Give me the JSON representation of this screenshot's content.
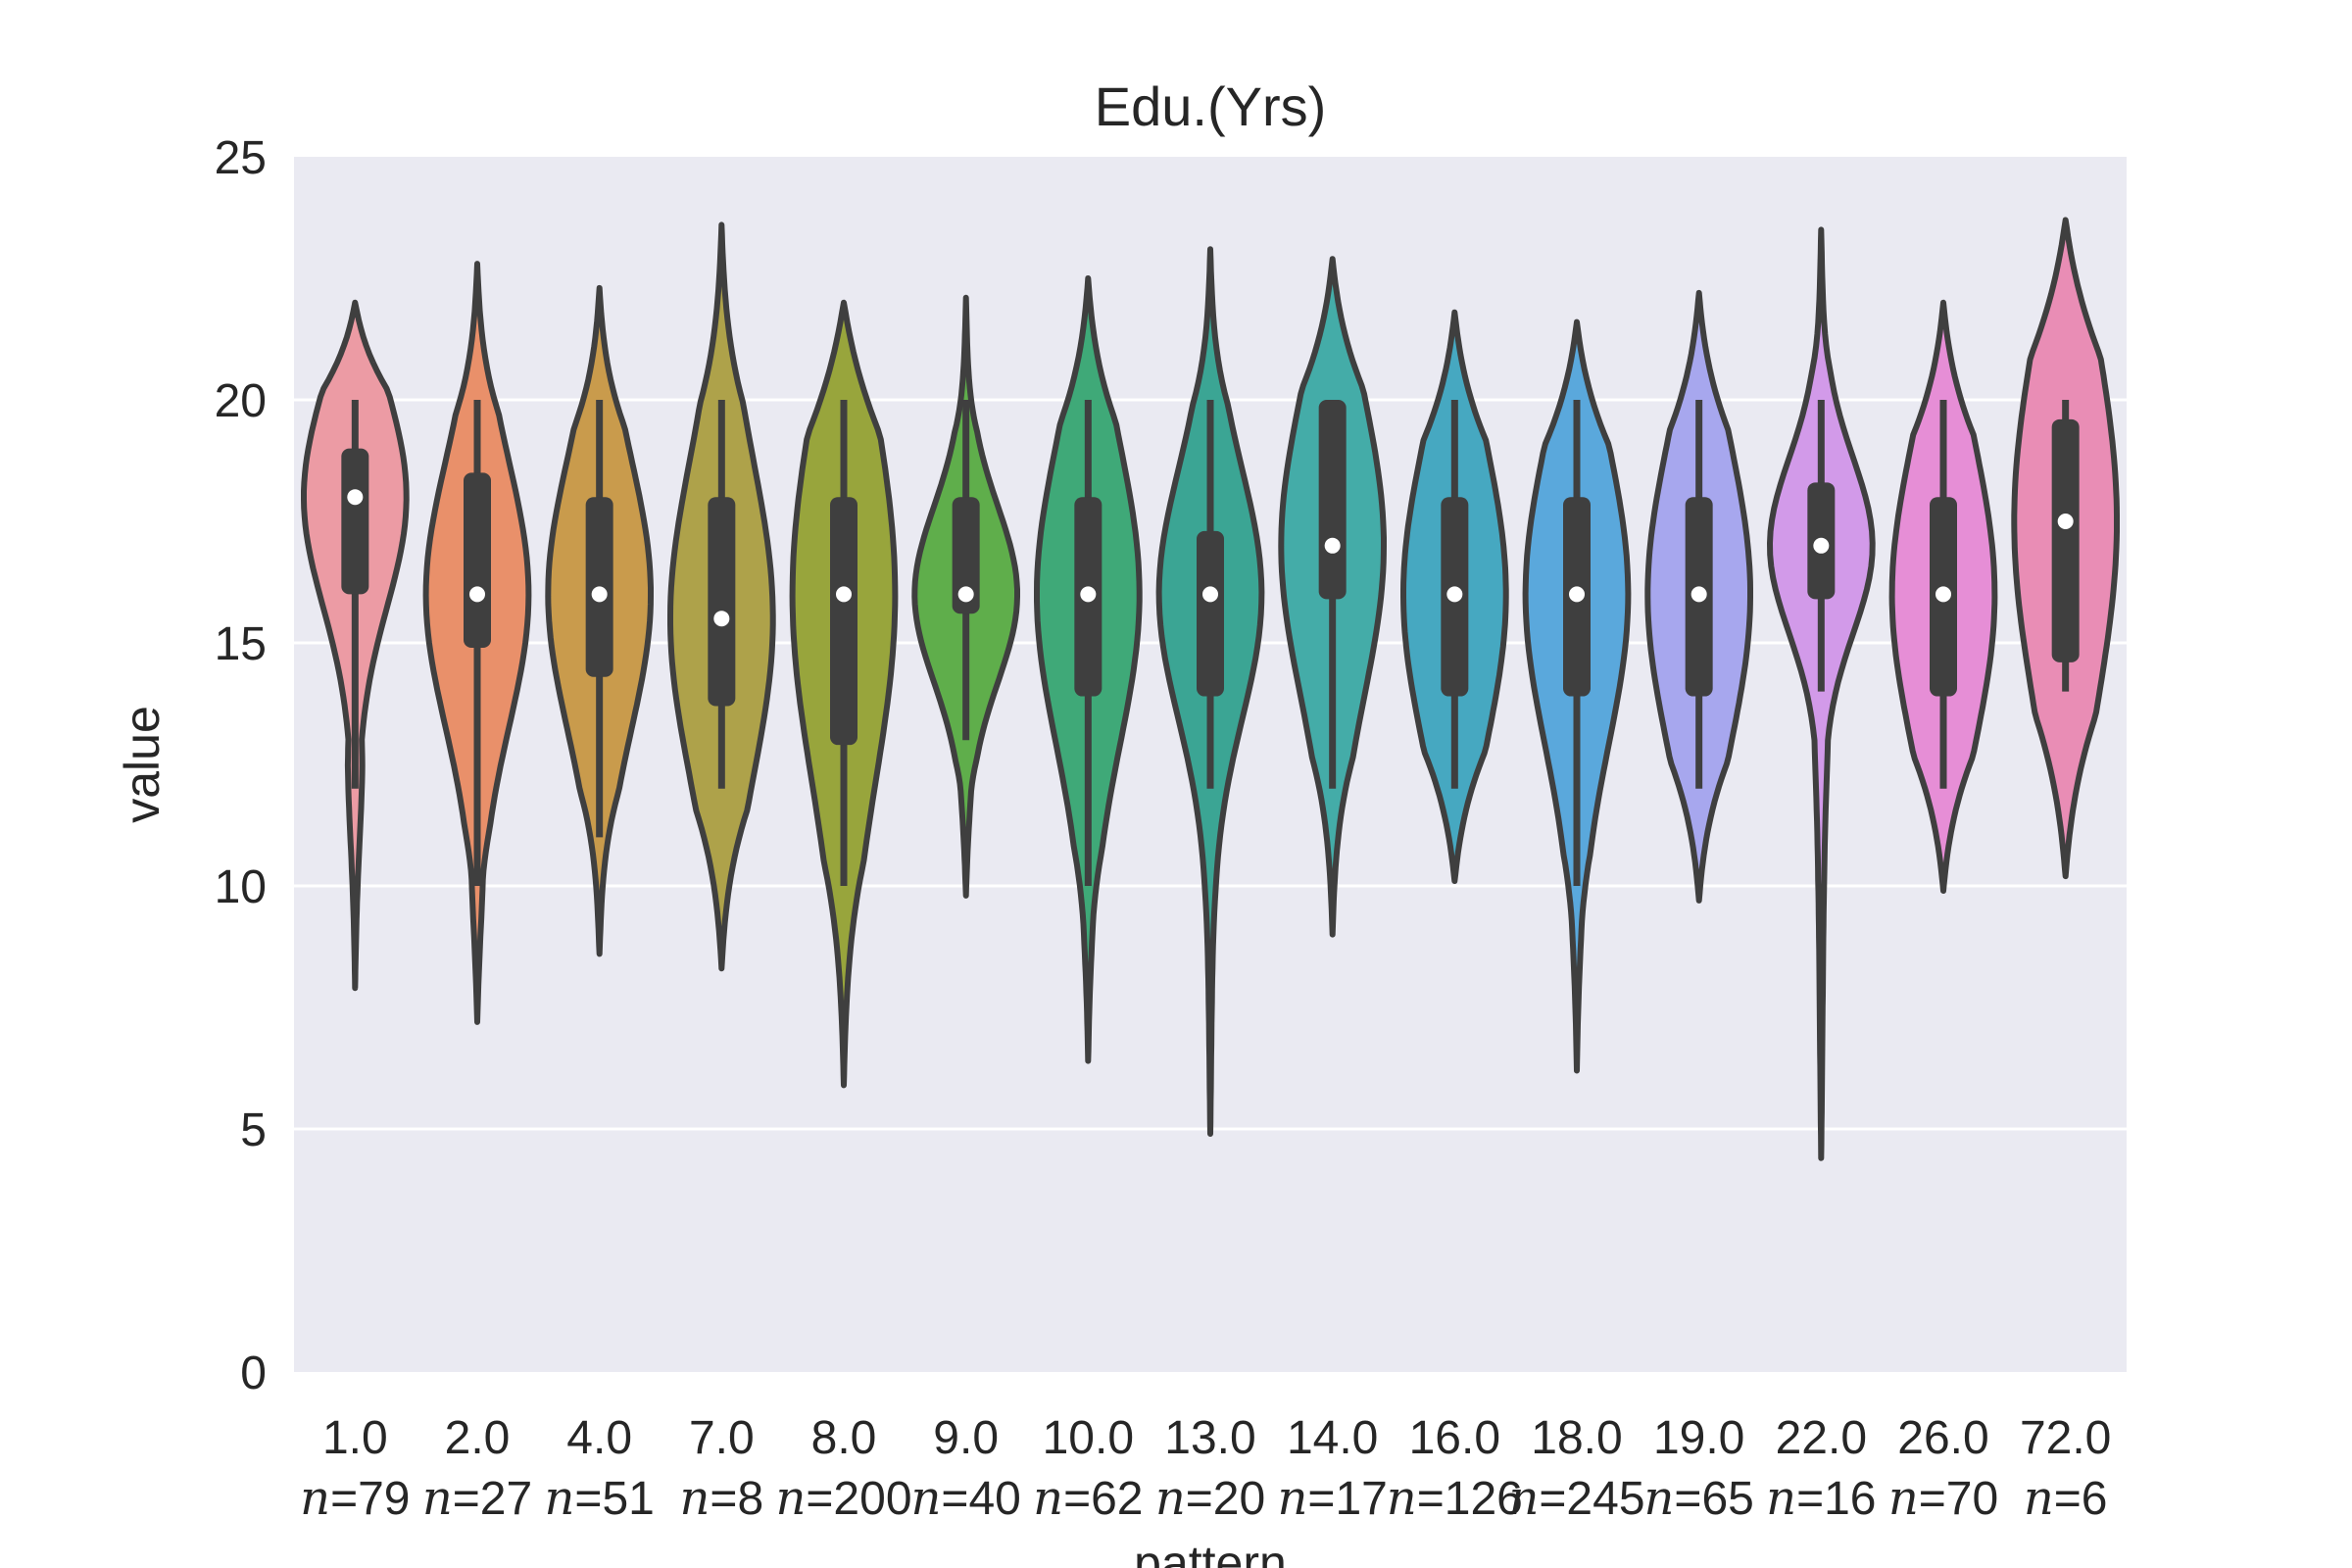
{
  "chart_data": {
    "type": "violin",
    "title": "Edu.(Yrs)",
    "xlabel": "pattern",
    "ylabel": "value",
    "ylim": [
      0,
      25
    ],
    "yticks": [
      0,
      5,
      10,
      15,
      20,
      25
    ],
    "grid": true,
    "n_prefix": "n",
    "categories": [
      {
        "label": "1.0",
        "n_text": "=79",
        "min": 7.9,
        "max": 22.0,
        "q1": 16.0,
        "median": 18.0,
        "q3": 19.0,
        "whisker_low": 12.0,
        "whisker_high": 20.0,
        "color": "#ec9ba4"
      },
      {
        "label": "2.0",
        "n_text": "=27",
        "min": 7.2,
        "max": 22.8,
        "q1": 14.9,
        "median": 16.0,
        "q3": 18.5,
        "whisker_low": 10.0,
        "whisker_high": 20.0,
        "color": "#e9906a"
      },
      {
        "label": "4.0",
        "n_text": "=51",
        "min": 8.6,
        "max": 22.3,
        "q1": 14.3,
        "median": 16.0,
        "q3": 18.0,
        "whisker_low": 11.0,
        "whisker_high": 20.0,
        "color": "#c99b4c"
      },
      {
        "label": "7.0",
        "n_text": "=8",
        "min": 8.3,
        "max": 23.6,
        "q1": 13.7,
        "median": 15.5,
        "q3": 18.0,
        "whisker_low": 12.0,
        "whisker_high": 20.0,
        "color": "#aea24a"
      },
      {
        "label": "8.0",
        "n_text": "=200",
        "min": 5.9,
        "max": 22.0,
        "q1": 12.9,
        "median": 16.0,
        "q3": 18.0,
        "whisker_low": 10.0,
        "whisker_high": 20.0,
        "color": "#98a53c"
      },
      {
        "label": "9.0",
        "n_text": "=40",
        "min": 9.8,
        "max": 22.1,
        "q1": 15.6,
        "median": 16.0,
        "q3": 18.0,
        "whisker_low": 13.0,
        "whisker_high": 20.0,
        "color": "#5fae4b"
      },
      {
        "label": "10.0",
        "n_text": "=62",
        "min": 6.4,
        "max": 22.5,
        "q1": 13.9,
        "median": 16.0,
        "q3": 18.0,
        "whisker_low": 10.0,
        "whisker_high": 20.0,
        "color": "#3fa978"
      },
      {
        "label": "13.0",
        "n_text": "=20",
        "min": 4.9,
        "max": 23.1,
        "q1": 13.9,
        "median": 16.0,
        "q3": 17.3,
        "whisker_low": 12.0,
        "whisker_high": 20.0,
        "color": "#3ba594"
      },
      {
        "label": "14.0",
        "n_text": "=17",
        "min": 9.0,
        "max": 22.9,
        "q1": 15.9,
        "median": 17.0,
        "q3": 20.0,
        "whisker_low": 12.0,
        "whisker_high": 20.0,
        "color": "#44aca8"
      },
      {
        "label": "16.0",
        "n_text": "=126",
        "min": 10.1,
        "max": 21.8,
        "q1": 13.9,
        "median": 16.0,
        "q3": 18.0,
        "whisker_low": 12.0,
        "whisker_high": 20.0,
        "color": "#46a8c1"
      },
      {
        "label": "18.0",
        "n_text": "=245",
        "min": 6.2,
        "max": 21.6,
        "q1": 13.9,
        "median": 16.0,
        "q3": 18.0,
        "whisker_low": 10.0,
        "whisker_high": 20.0,
        "color": "#5aa8dc"
      },
      {
        "label": "19.0",
        "n_text": "=65",
        "min": 9.7,
        "max": 22.2,
        "q1": 13.9,
        "median": 16.0,
        "q3": 18.0,
        "whisker_low": 12.0,
        "whisker_high": 20.0,
        "color": "#a7a7ee"
      },
      {
        "label": "22.0",
        "n_text": "=16",
        "min": 4.4,
        "max": 23.5,
        "q1": 15.9,
        "median": 17.0,
        "q3": 18.3,
        "whisker_low": 14.0,
        "whisker_high": 20.0,
        "color": "#d29ae9"
      },
      {
        "label": "26.0",
        "n_text": "=70",
        "min": 9.9,
        "max": 22.0,
        "q1": 13.9,
        "median": 16.0,
        "q3": 18.0,
        "whisker_low": 12.0,
        "whisker_high": 20.0,
        "color": "#e68ed6"
      },
      {
        "label": "72.0",
        "n_text": "=6",
        "min": 10.2,
        "max": 23.7,
        "q1": 14.6,
        "median": 17.5,
        "q3": 19.6,
        "whisker_low": 14.0,
        "whisker_high": 20.0,
        "color": "#e98db5"
      }
    ]
  },
  "colors": {
    "axes_background": "#eaeaf2",
    "grid": "#ffffff",
    "outline": "#3f3f3f",
    "median_dot": "#ffffff"
  }
}
